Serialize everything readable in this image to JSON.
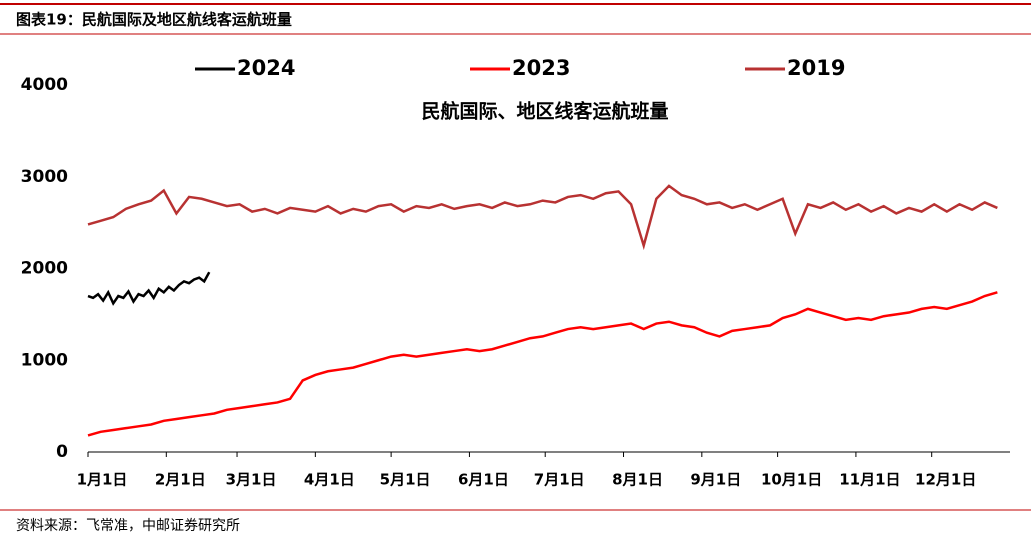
{
  "header": {
    "title": "图表19：民航国际及地区航线客运航班量"
  },
  "chart_data": {
    "type": "line",
    "title": "民航国际、地区线客运航班量",
    "xlim": [
      1,
      366
    ],
    "xticks": [
      {
        "value": 1,
        "label": "1月1日"
      },
      {
        "value": 32,
        "label": "2月1日"
      },
      {
        "value": 60,
        "label": "3月1日"
      },
      {
        "value": 91,
        "label": "4月1日"
      },
      {
        "value": 121,
        "label": "5月1日"
      },
      {
        "value": 152,
        "label": "6月1日"
      },
      {
        "value": 182,
        "label": "7月1日"
      },
      {
        "value": 213,
        "label": "8月1日"
      },
      {
        "value": 244,
        "label": "9月1日"
      },
      {
        "value": 274,
        "label": "10月1日"
      },
      {
        "value": 305,
        "label": "11月1日"
      },
      {
        "value": 335,
        "label": "12月1日"
      }
    ],
    "ylim": [
      0,
      4000
    ],
    "yticks": [
      0,
      1000,
      2000,
      3000,
      4000
    ],
    "series": [
      {
        "name": "2024",
        "color": "#000000",
        "x": [
          1,
          3,
          5,
          7,
          9,
          11,
          13,
          15,
          17,
          19,
          21,
          23,
          25,
          27,
          29,
          31,
          33,
          35,
          37,
          39,
          41,
          43,
          45,
          47,
          49
        ],
        "values": [
          1700,
          1680,
          1720,
          1650,
          1740,
          1620,
          1700,
          1680,
          1750,
          1640,
          1720,
          1700,
          1760,
          1680,
          1780,
          1740,
          1800,
          1760,
          1820,
          1860,
          1840,
          1880,
          1900,
          1860,
          1960
        ]
      },
      {
        "name": "2023",
        "color": "#ff0000",
        "x": [
          1,
          6,
          11,
          16,
          21,
          26,
          31,
          36,
          41,
          46,
          51,
          56,
          61,
          66,
          71,
          76,
          81,
          86,
          91,
          96,
          101,
          106,
          111,
          116,
          121,
          126,
          131,
          136,
          141,
          146,
          151,
          156,
          161,
          166,
          171,
          176,
          181,
          186,
          191,
          196,
          201,
          206,
          211,
          216,
          221,
          226,
          231,
          236,
          241,
          246,
          251,
          256,
          261,
          266,
          271,
          276,
          281,
          286,
          291,
          296,
          301,
          306,
          311,
          316,
          321,
          326,
          331,
          336,
          341,
          346,
          351,
          356,
          361
        ],
        "values": [
          180,
          220,
          240,
          260,
          280,
          300,
          340,
          360,
          380,
          400,
          420,
          460,
          480,
          500,
          520,
          540,
          580,
          780,
          840,
          880,
          900,
          920,
          960,
          1000,
          1040,
          1060,
          1040,
          1060,
          1080,
          1100,
          1120,
          1100,
          1120,
          1160,
          1200,
          1240,
          1260,
          1300,
          1340,
          1360,
          1340,
          1360,
          1380,
          1400,
          1340,
          1400,
          1420,
          1380,
          1360,
          1300,
          1260,
          1320,
          1340,
          1360,
          1380,
          1460,
          1500,
          1560,
          1520,
          1480,
          1440,
          1460,
          1440,
          1480,
          1500,
          1520,
          1560,
          1580,
          1560,
          1600,
          1640,
          1700,
          1740
        ]
      },
      {
        "name": "2019",
        "color": "#b83232",
        "x": [
          1,
          6,
          11,
          16,
          21,
          26,
          31,
          36,
          41,
          46,
          51,
          56,
          61,
          66,
          71,
          76,
          81,
          86,
          91,
          96,
          101,
          106,
          111,
          116,
          121,
          126,
          131,
          136,
          141,
          146,
          151,
          156,
          161,
          166,
          171,
          176,
          181,
          186,
          191,
          196,
          201,
          206,
          211,
          216,
          221,
          226,
          231,
          236,
          241,
          246,
          251,
          256,
          261,
          266,
          271,
          276,
          281,
          286,
          291,
          296,
          301,
          306,
          311,
          316,
          321,
          326,
          331,
          336,
          341,
          346,
          351,
          356,
          361
        ],
        "values": [
          2480,
          2520,
          2560,
          2650,
          2700,
          2740,
          2850,
          2600,
          2780,
          2760,
          2720,
          2680,
          2700,
          2620,
          2650,
          2600,
          2660,
          2640,
          2620,
          2680,
          2600,
          2650,
          2620,
          2680,
          2700,
          2620,
          2680,
          2660,
          2700,
          2650,
          2680,
          2700,
          2660,
          2720,
          2680,
          2700,
          2740,
          2720,
          2780,
          2800,
          2760,
          2820,
          2840,
          2700,
          2250,
          2760,
          2900,
          2800,
          2760,
          2700,
          2720,
          2660,
          2700,
          2640,
          2700,
          2760,
          2380,
          2700,
          2660,
          2720,
          2640,
          2700,
          2620,
          2680,
          2600,
          2660,
          2620,
          2700,
          2620,
          2700,
          2640,
          2720,
          2660
        ]
      }
    ]
  },
  "source": "资料来源：飞常准，中邮证券研究所"
}
